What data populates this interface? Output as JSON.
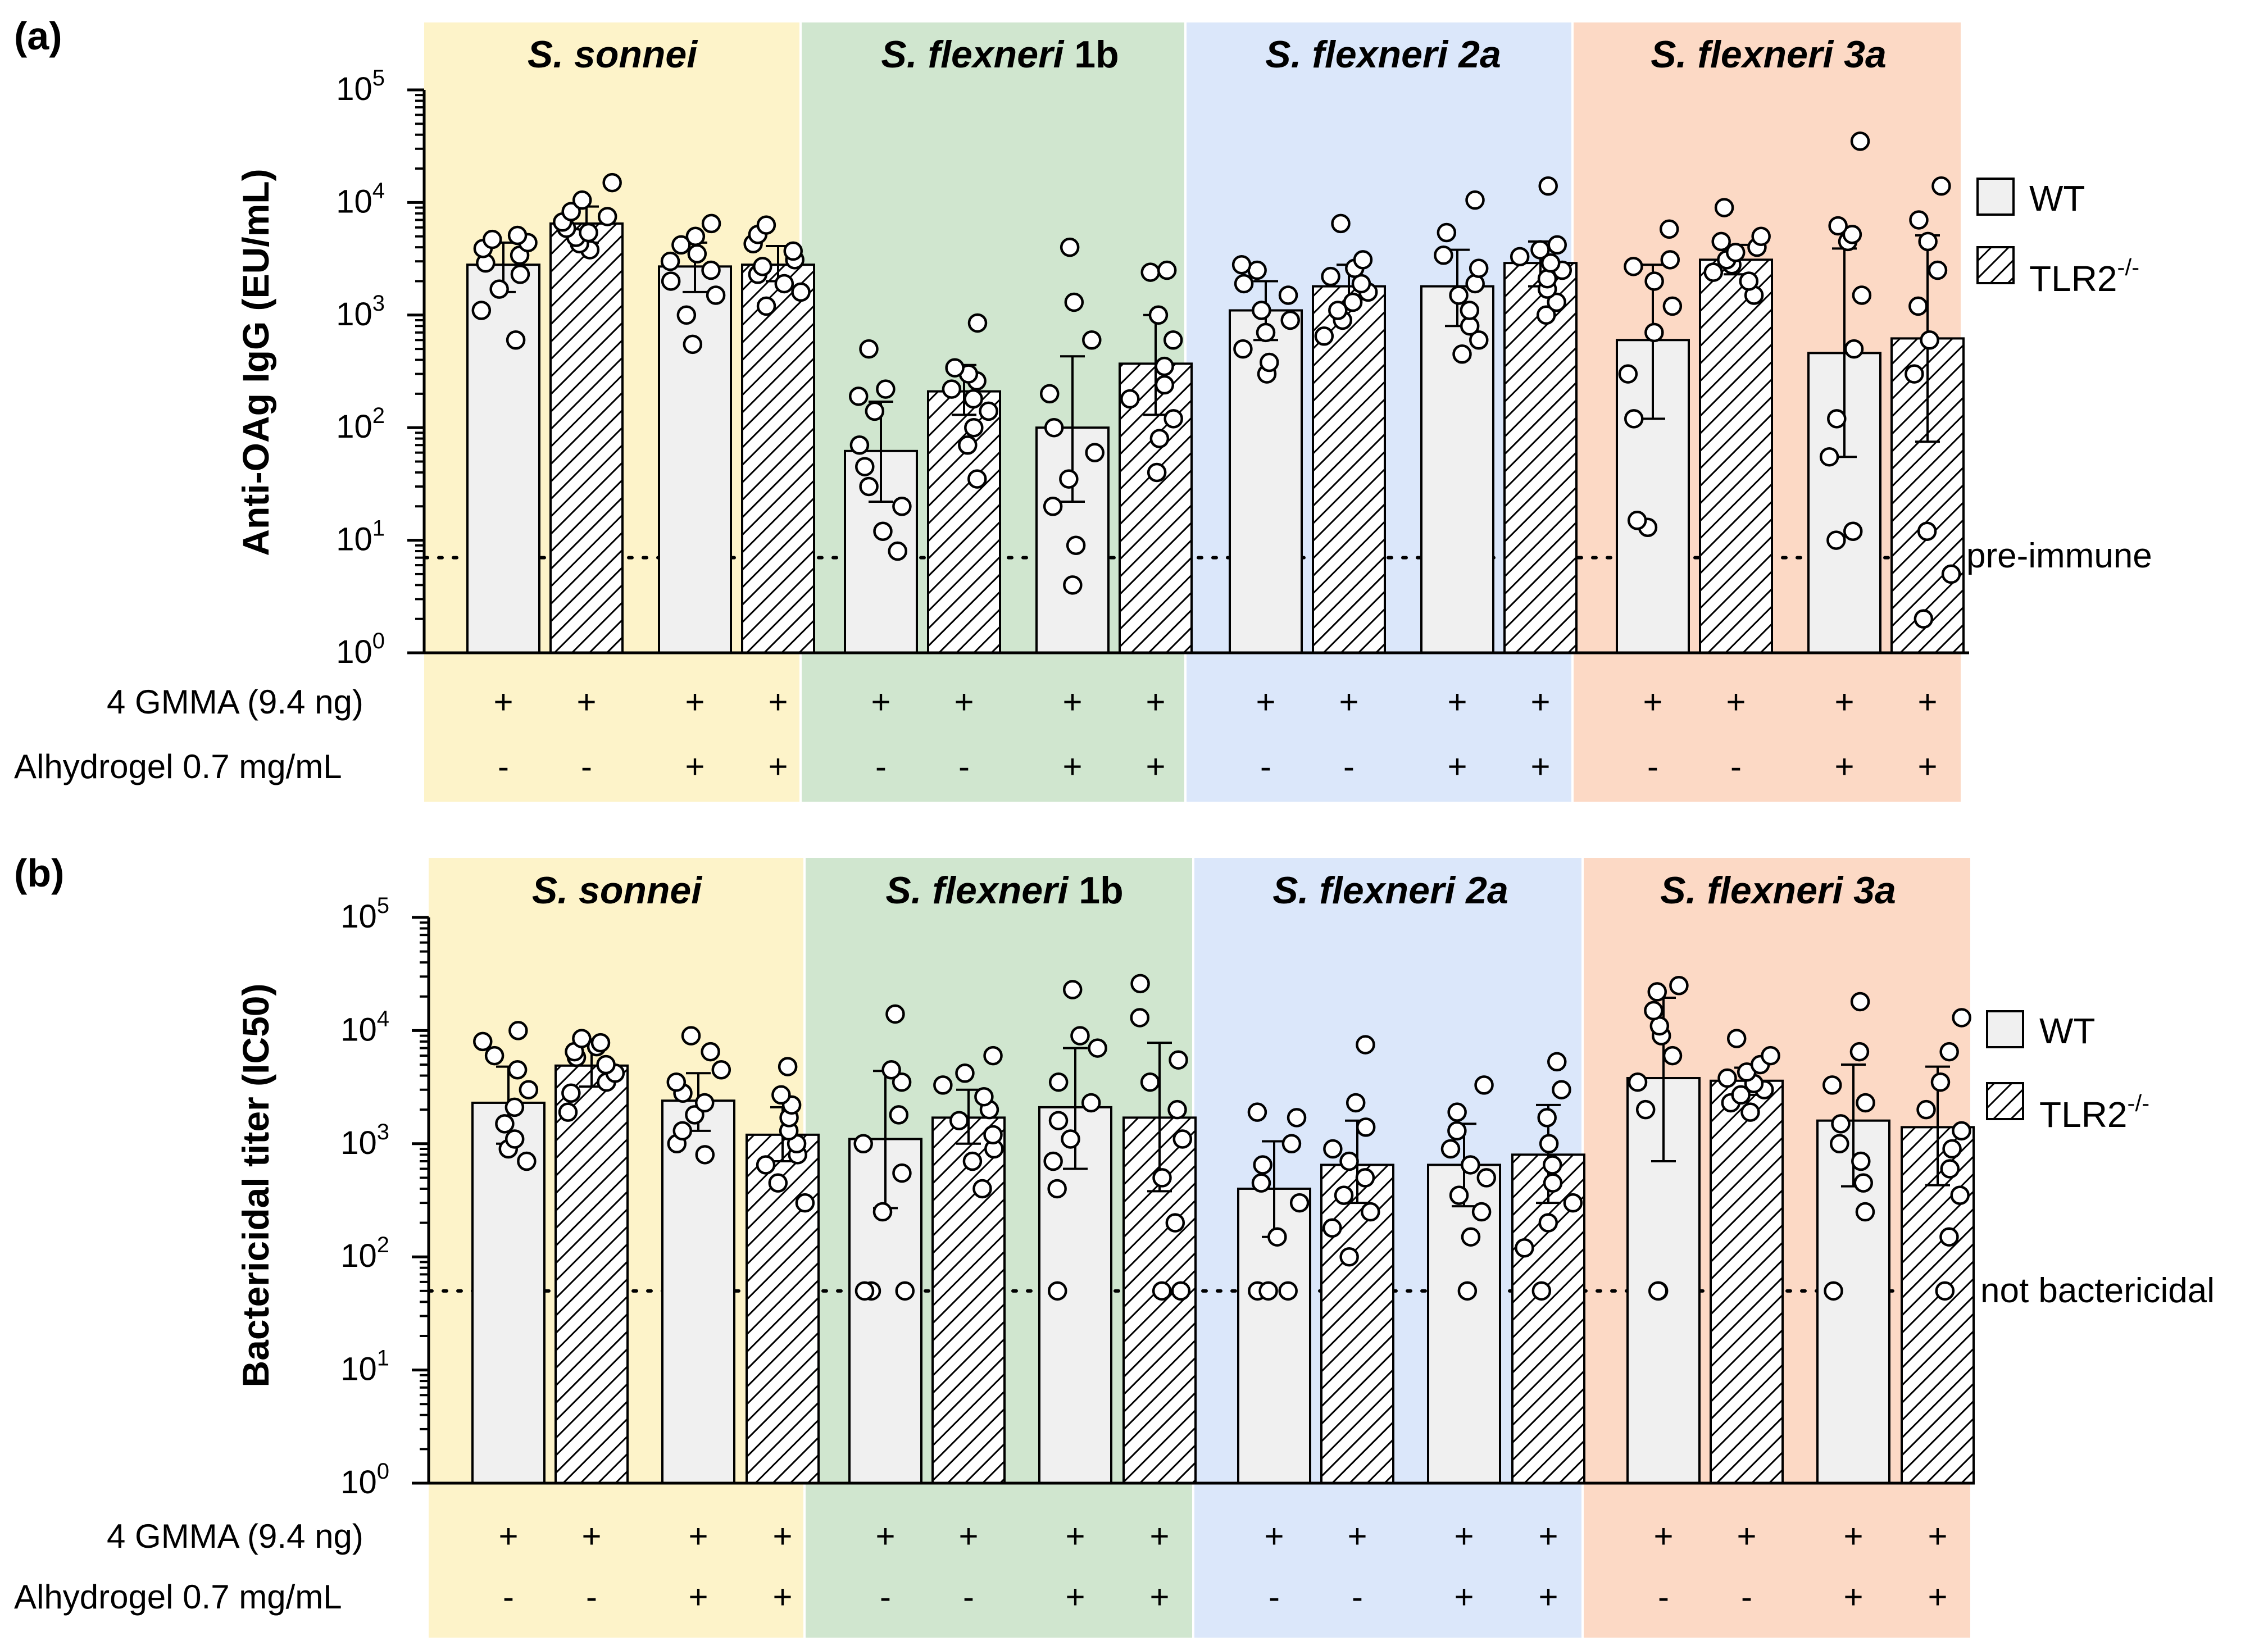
{
  "colors": {
    "bands": [
      "#fdf3c9",
      "#d0e6cf",
      "#dbe7fa",
      "#fcd9c5"
    ],
    "bar_fill": "#f0f0f0",
    "ink": "#000000"
  },
  "legend": {
    "wt": "WT",
    "tlr2": "TLR2",
    "tlr2_sup": "-/-"
  },
  "treatment_rows": {
    "gmma_label": "4 GMMA (9.4 ng)",
    "alhydrogel_label": "Alhydrogel 0.7 mg/mL",
    "gmma_signs": [
      "+",
      "+",
      "+",
      "+"
    ],
    "alhydrogel_signs": [
      "-",
      "-",
      "+",
      "+"
    ]
  },
  "chart_data": [
    {
      "panel_label": "(a)",
      "type": "bar",
      "scale": "log10",
      "ylabel": "Anti-OAg IgG (EU/mL)",
      "ylim": [
        1,
        100000
      ],
      "ytick_exponents": [
        "0",
        "1",
        "2",
        "3",
        "4",
        "5"
      ],
      "tick_base": "10",
      "threshold": {
        "value": 7,
        "label": "pre-immune"
      },
      "groups": [
        {
          "name_italic": "S. sonnei",
          "name_plain": "",
          "bars": [
            {
              "genotype": "WT",
              "alhydrogel": false,
              "mean": 2800,
              "err_low": 1600,
              "err_high": 4400,
              "points": [
                600,
                1100,
                1700,
                2300,
                2900,
                3400,
                3900,
                4400,
                4700,
                5100
              ]
            },
            {
              "genotype": "TLR2-/-",
              "alhydrogel": false,
              "mean": 6500,
              "err_low": 4400,
              "err_high": 9200,
              "points": [
                3800,
                4300,
                4900,
                5400,
                5900,
                6700,
                7500,
                8300,
                10500,
                15000
              ]
            },
            {
              "genotype": "WT",
              "alhydrogel": true,
              "mean": 2700,
              "err_low": 1600,
              "err_high": 4400,
              "points": [
                550,
                1000,
                1500,
                2000,
                2500,
                3000,
                3500,
                4200,
                5000,
                6500
              ]
            },
            {
              "genotype": "TLR2-/-",
              "alhydrogel": true,
              "mean": 2800,
              "err_low": 2000,
              "err_high": 4100,
              "points": [
                1200,
                1600,
                1900,
                2300,
                2700,
                3100,
                3700,
                4300,
                5200,
                6300
              ]
            }
          ]
        },
        {
          "name_italic": "S. flexneri",
          "name_plain": " 1b",
          "bars": [
            {
              "genotype": "WT",
              "alhydrogel": false,
              "mean": 62,
              "err_low": 22,
              "err_high": 170,
              "points": [
                8,
                12,
                20,
                30,
                45,
                70,
                140,
                190,
                220,
                500
              ]
            },
            {
              "genotype": "TLR2-/-",
              "alhydrogel": false,
              "mean": 210,
              "err_low": 130,
              "err_high": 360,
              "points": [
                35,
                70,
                100,
                140,
                180,
                220,
                260,
                300,
                340,
                850
              ]
            },
            {
              "genotype": "WT",
              "alhydrogel": true,
              "mean": 100,
              "err_low": 22,
              "err_high": 430,
              "points": [
                4,
                9,
                20,
                35,
                60,
                100,
                200,
                600,
                1300,
                4000
              ]
            },
            {
              "genotype": "TLR2-/-",
              "alhydrogel": true,
              "mean": 370,
              "err_low": 130,
              "err_high": 1000,
              "points": [
                40,
                80,
                120,
                180,
                240,
                350,
                600,
                1000,
                2400,
                2500
              ]
            }
          ]
        },
        {
          "name_italic": "S. flexneri",
          "name_plain": " 2a",
          "bars": [
            {
              "genotype": "WT",
              "alhydrogel": false,
              "mean": 1100,
              "err_low": 600,
              "err_high": 2000,
              "points": [
                300,
                380,
                500,
                700,
                900,
                1100,
                1500,
                1900,
                2500,
                2800
              ]
            },
            {
              "genotype": "TLR2-/-",
              "alhydrogel": false,
              "mean": 1800,
              "err_low": 1200,
              "err_high": 2800,
              "points": [
                650,
                900,
                1100,
                1300,
                1600,
                1900,
                2200,
                2600,
                3100,
                6500
              ]
            },
            {
              "genotype": "WT",
              "alhydrogel": true,
              "mean": 1800,
              "err_low": 800,
              "err_high": 3800,
              "points": [
                450,
                600,
                800,
                1100,
                1500,
                1900,
                2600,
                3400,
                5400,
                10500
              ]
            },
            {
              "genotype": "TLR2-/-",
              "alhydrogel": true,
              "mean": 2900,
              "err_low": 1800,
              "err_high": 4500,
              "points": [
                1000,
                1300,
                1700,
                2100,
                2500,
                2900,
                3300,
                3800,
                4200,
                14000
              ]
            }
          ]
        },
        {
          "name_italic": "S. flexneri",
          "name_plain": " 3a",
          "bars": [
            {
              "genotype": "WT",
              "alhydrogel": false,
              "mean": 600,
              "err_low": 120,
              "err_high": 2800,
              "points": [
                13,
                15,
                120,
                300,
                700,
                1200,
                2000,
                2700,
                3100,
                5800
              ]
            },
            {
              "genotype": "TLR2-/-",
              "alhydrogel": false,
              "mean": 3100,
              "err_low": 2300,
              "err_high": 4200,
              "points": [
                1500,
                2000,
                2400,
                2800,
                3100,
                3600,
                4000,
                4500,
                5000,
                9000
              ]
            },
            {
              "genotype": "WT",
              "alhydrogel": true,
              "mean": 460,
              "err_low": 55,
              "err_high": 3900,
              "points": [
                10,
                12,
                55,
                120,
                500,
                1500,
                4500,
                5200,
                6200,
                35000
              ]
            },
            {
              "genotype": "TLR2-/-",
              "alhydrogel": true,
              "mean": 620,
              "err_low": 75,
              "err_high": 5100,
              "points": [
                2,
                5,
                12,
                300,
                600,
                1200,
                2500,
                4500,
                7000,
                14000
              ]
            }
          ]
        }
      ]
    },
    {
      "panel_label": "(b)",
      "type": "bar",
      "scale": "log10",
      "ylabel": "Bactericidal titer (IC50)",
      "ylim": [
        1,
        100000
      ],
      "ytick_exponents": [
        "0",
        "1",
        "2",
        "3",
        "4",
        "5"
      ],
      "tick_base": "10",
      "threshold": {
        "value": 50,
        "label": "not bactericidal"
      },
      "groups": [
        {
          "name_italic": "S. sonnei",
          "name_plain": "",
          "bars": [
            {
              "genotype": "WT",
              "alhydrogel": false,
              "mean": 2300,
              "err_low": 1000,
              "err_high": 4800,
              "points": [
                700,
                900,
                1100,
                1500,
                2100,
                3000,
                4500,
                6000,
                8000,
                10000
              ]
            },
            {
              "genotype": "TLR2-/-",
              "alhydrogel": false,
              "mean": 4900,
              "err_low": 3200,
              "err_high": 7500,
              "points": [
                1900,
                2800,
                3500,
                4200,
                5000,
                5800,
                6500,
                7200,
                7800,
                8500
              ]
            },
            {
              "genotype": "WT",
              "alhydrogel": true,
              "mean": 2400,
              "err_low": 1300,
              "err_high": 4200,
              "points": [
                800,
                1000,
                1300,
                1800,
                2300,
                2800,
                3500,
                4500,
                6500,
                9000
              ]
            },
            {
              "genotype": "TLR2-/-",
              "alhydrogel": true,
              "mean": 1200,
              "err_low": 700,
              "err_high": 2100,
              "points": [
                300,
                450,
                650,
                800,
                1000,
                1300,
                1700,
                2200,
                2700,
                4800
              ]
            }
          ]
        },
        {
          "name_italic": "S. flexneri",
          "name_plain": " 1b",
          "bars": [
            {
              "genotype": "WT",
              "alhydrogel": false,
              "mean": 1100,
              "err_low": 270,
              "err_high": 4400,
              "points": [
                50,
                50,
                50,
                250,
                550,
                1000,
                1800,
                3500,
                4500,
                14000
              ]
            },
            {
              "genotype": "TLR2-/-",
              "alhydrogel": false,
              "mean": 1700,
              "err_low": 1000,
              "err_high": 3000,
              "points": [
                400,
                700,
                900,
                1200,
                1600,
                2000,
                2600,
                3300,
                4200,
                6000
              ]
            },
            {
              "genotype": "WT",
              "alhydrogel": true,
              "mean": 2100,
              "err_low": 600,
              "err_high": 7000,
              "points": [
                50,
                400,
                700,
                1100,
                1600,
                2300,
                3500,
                7000,
                9000,
                23000
              ]
            },
            {
              "genotype": "TLR2-/-",
              "alhydrogel": true,
              "mean": 1700,
              "err_low": 380,
              "err_high": 7800,
              "points": [
                50,
                50,
                200,
                500,
                1100,
                2000,
                3500,
                5500,
                13000,
                26000
              ]
            }
          ]
        },
        {
          "name_italic": "S. flexneri",
          "name_plain": " 2a",
          "bars": [
            {
              "genotype": "WT",
              "alhydrogel": false,
              "mean": 400,
              "err_low": 150,
              "err_high": 1050,
              "points": [
                50,
                50,
                50,
                150,
                300,
                450,
                650,
                1000,
                1700,
                1900
              ]
            },
            {
              "genotype": "TLR2-/-",
              "alhydrogel": false,
              "mean": 650,
              "err_low": 300,
              "err_high": 1600,
              "points": [
                100,
                180,
                250,
                350,
                500,
                700,
                900,
                1400,
                2300,
                7500
              ]
            },
            {
              "genotype": "WT",
              "alhydrogel": true,
              "mean": 650,
              "err_low": 280,
              "err_high": 1500,
              "points": [
                50,
                150,
                250,
                350,
                500,
                650,
                900,
                1300,
                1900,
                3300
              ]
            },
            {
              "genotype": "TLR2-/-",
              "alhydrogel": true,
              "mean": 800,
              "err_low": 300,
              "err_high": 2200,
              "points": [
                50,
                120,
                200,
                300,
                450,
                650,
                1000,
                1700,
                3000,
                5300
              ]
            }
          ]
        },
        {
          "name_italic": "S. flexneri",
          "name_plain": " 3a",
          "bars": [
            {
              "genotype": "WT",
              "alhydrogel": false,
              "mean": 3800,
              "err_low": 700,
              "err_high": 19500,
              "points": [
                50,
                50,
                2000,
                3500,
                6000,
                9000,
                11000,
                15000,
                22000,
                25000
              ]
            },
            {
              "genotype": "TLR2-/-",
              "alhydrogel": false,
              "mean": 3600,
              "err_low": 2700,
              "err_high": 4700,
              "points": [
                1900,
                2300,
                2700,
                3000,
                3400,
                3800,
                4300,
                5000,
                6000,
                8500
              ]
            },
            {
              "genotype": "WT",
              "alhydrogel": true,
              "mean": 1600,
              "err_low": 420,
              "err_high": 5000,
              "points": [
                50,
                250,
                450,
                700,
                1000,
                1500,
                2300,
                3300,
                6500,
                18000
              ]
            },
            {
              "genotype": "TLR2-/-",
              "alhydrogel": true,
              "mean": 1400,
              "err_low": 430,
              "err_high": 4800,
              "points": [
                50,
                150,
                350,
                600,
                900,
                1300,
                2000,
                3500,
                6500,
                13000
              ]
            }
          ]
        }
      ]
    }
  ]
}
